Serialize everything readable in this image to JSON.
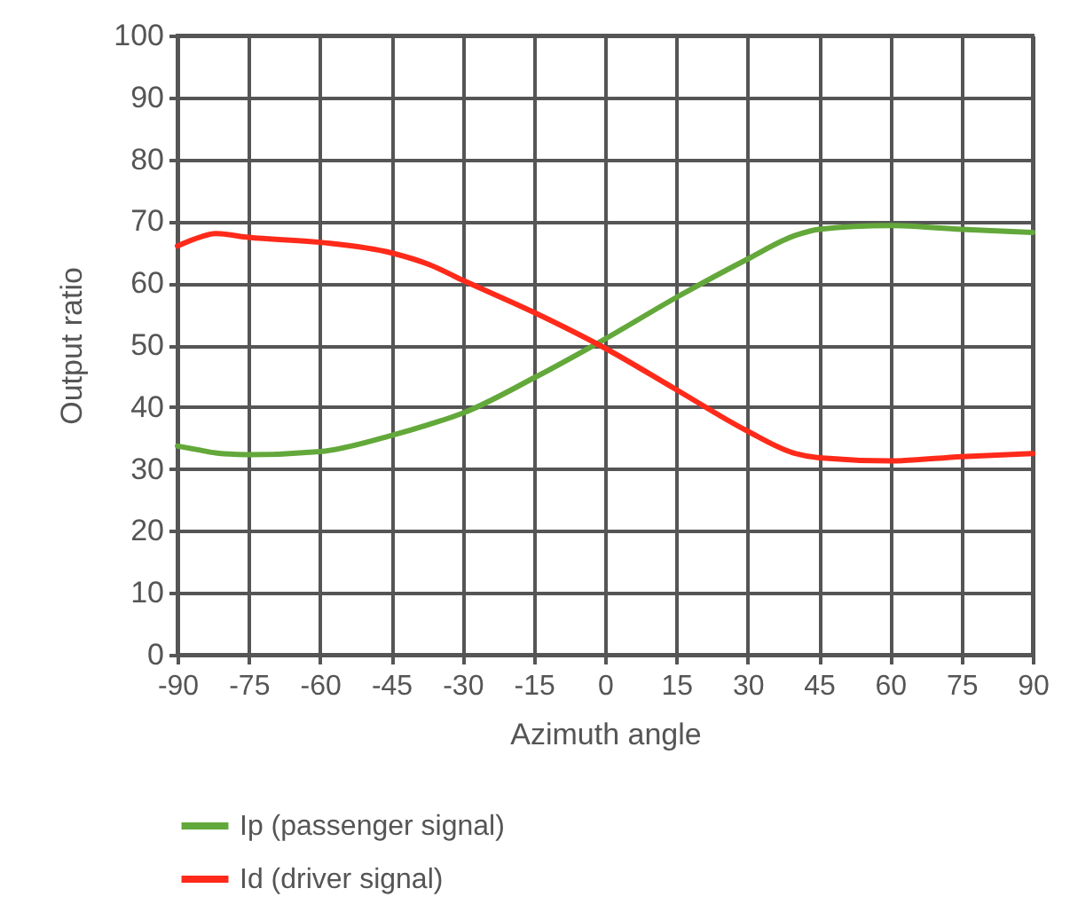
{
  "chart_data": {
    "type": "line",
    "xlabel": "Azimuth angle",
    "ylabel": "Output ratio",
    "x": [
      -90,
      -85,
      -82,
      -75,
      -60,
      -45,
      -37,
      -30,
      -15,
      0,
      15,
      30,
      40,
      45,
      60,
      75,
      90
    ],
    "series": [
      {
        "name": "Ip (passenger signal)",
        "color": "#63a83a",
        "values": [
          33.7,
          33,
          32.6,
          32.3,
          32.8,
          35.4,
          37.2,
          39,
          44.7,
          51,
          57.7,
          63.9,
          67.7,
          68.7,
          69.3,
          68.7,
          68.2
        ]
      },
      {
        "name": "Id (driver signal)",
        "color": "#ff2a1a",
        "values": [
          66,
          67.5,
          68,
          67.4,
          66.6,
          64.9,
          63,
          60.5,
          55.3,
          49.5,
          42.8,
          36.1,
          32.5,
          31.8,
          31.3,
          32,
          32.5
        ]
      }
    ],
    "xlim": [
      -90,
      90
    ],
    "xticks": [
      -90,
      -75,
      -60,
      -45,
      -30,
      -15,
      0,
      15,
      30,
      45,
      60,
      75,
      90
    ],
    "ylim": [
      0,
      100
    ],
    "yticks": [
      0,
      10,
      20,
      30,
      40,
      50,
      60,
      70,
      80,
      90,
      100
    ],
    "grid": true,
    "legend": "bottom",
    "marker": "none",
    "line_style": "solid"
  }
}
